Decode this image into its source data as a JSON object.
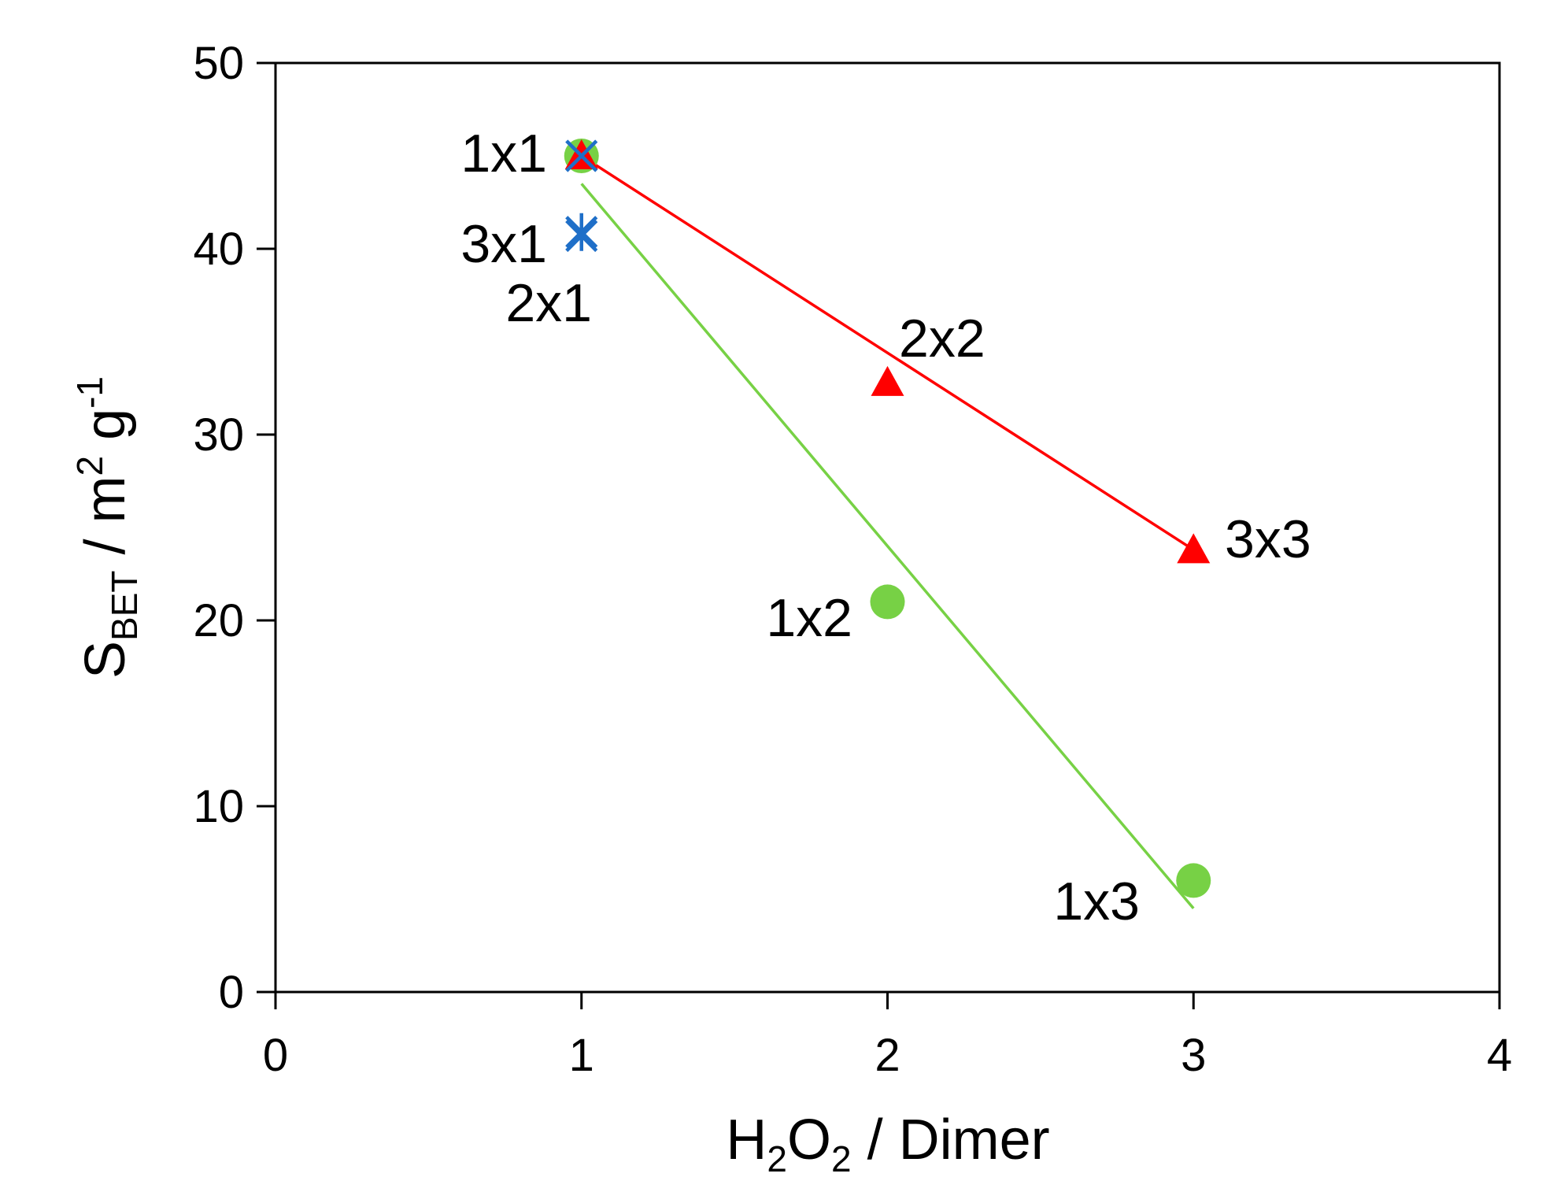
{
  "chart_data": {
    "type": "scatter",
    "title": "",
    "xlabel": {
      "main": "H",
      "sub1": "2",
      "mid": "O",
      "sub2": "2",
      "rest": " / Dimer"
    },
    "ylabel": {
      "main": "S",
      "sub": "BET",
      "mid": " / m",
      "sup1": "2",
      "mid2": " g",
      "sup2": "-1"
    },
    "xlim": [
      0,
      4
    ],
    "ylim": [
      0,
      50
    ],
    "x_ticks": [
      0,
      1,
      2,
      3,
      4
    ],
    "y_ticks": [
      0,
      10,
      20,
      30,
      40,
      50
    ],
    "grid": false,
    "legend": "none",
    "series": [
      {
        "marker": "circle",
        "color": "#77d145",
        "points": [
          {
            "x": 1,
            "y": 45,
            "label": "1x1"
          },
          {
            "x": 2,
            "y": 21,
            "label": "1x2"
          },
          {
            "x": 3,
            "y": 6,
            "label": "1x3"
          }
        ],
        "trendline": {
          "from": [
            1,
            43.5
          ],
          "to": [
            3,
            4.5
          ]
        }
      },
      {
        "marker": "triangle",
        "color": "#ff0000",
        "points": [
          {
            "x": 1,
            "y": 45,
            "label": ""
          },
          {
            "x": 2,
            "y": 32.8,
            "label": "2x2"
          },
          {
            "x": 3,
            "y": 23.8,
            "label": "3x3"
          }
        ],
        "trendline": {
          "from": [
            1,
            45
          ],
          "to": [
            3,
            23.8
          ]
        }
      },
      {
        "marker": "x",
        "color": "#1f6fc8",
        "points": [
          {
            "x": 1,
            "y": 45,
            "label": ""
          },
          {
            "x": 1,
            "y": 40.7,
            "label": "2x1"
          }
        ]
      },
      {
        "marker": "star",
        "color": "#1f6fc8",
        "points": [
          {
            "x": 1,
            "y": 40.9,
            "label": "3x1"
          }
        ]
      }
    ]
  }
}
